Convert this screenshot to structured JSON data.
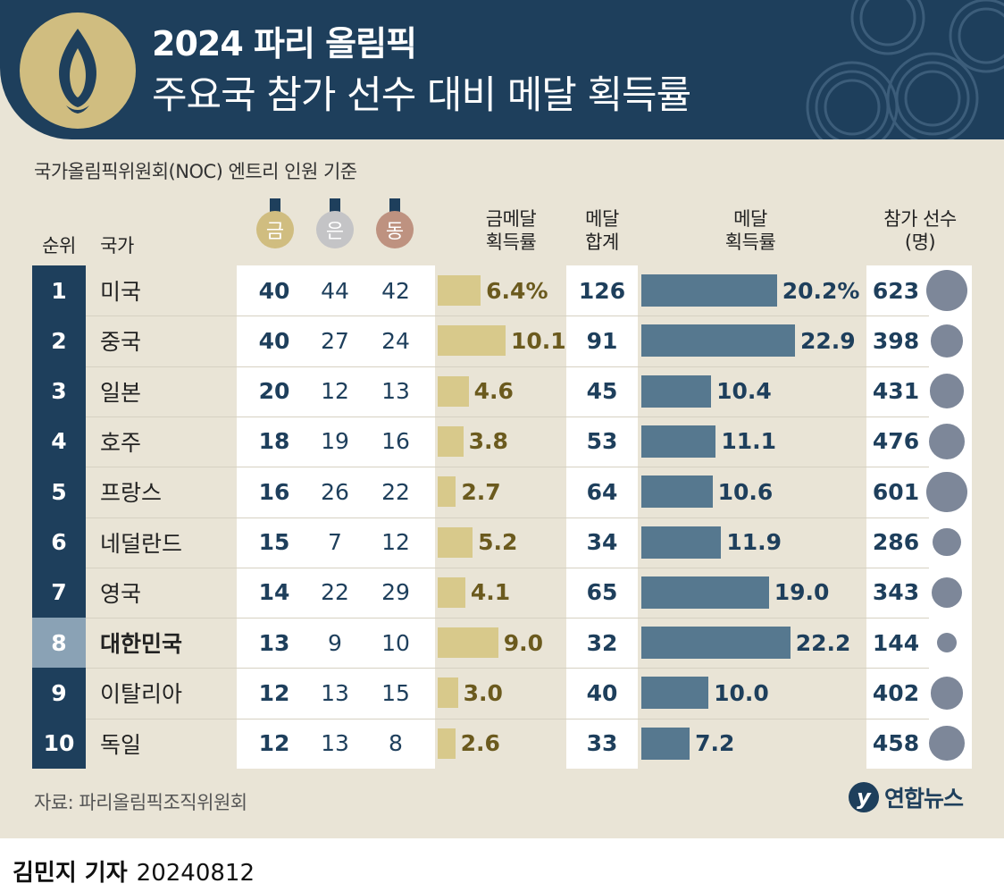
{
  "header": {
    "title": "2024 파리 올림픽",
    "subtitle": "주요국 참가 선수 대비 메달 획득률"
  },
  "note": "국가올림픽위원회(NOC) 엔트리 인원 기준",
  "columns": {
    "rank": "순위",
    "country": "국가",
    "gold": "금",
    "silver": "은",
    "bronze": "동",
    "gold_rate_1": "금메달",
    "gold_rate_2": "획득률",
    "total_1": "메달",
    "total_2": "합계",
    "medal_rate_1": "메달",
    "medal_rate_2": "획득률",
    "athletes_1": "참가 선수",
    "athletes_2": "(명)"
  },
  "colors": {
    "navy": "#1e3f5c",
    "gold": "#d0bd80",
    "silver": "#c4c4c6",
    "bronze": "#be9280",
    "highlight": "#8aa2b5"
  },
  "chart_data": {
    "type": "table",
    "title": "주요국 참가 선수 대비 메달 획득률",
    "gold_rate_max": 10.1,
    "medal_rate_max": 22.9,
    "athletes_max": 623,
    "rows": [
      {
        "rank": "1",
        "country": "미국",
        "gold": "40",
        "silver": "44",
        "bronze": "42",
        "gold_rate": 6.4,
        "gold_rate_label": "6.4%",
        "total": "126",
        "medal_rate": 20.2,
        "medal_rate_label": "20.2%",
        "athletes": 623,
        "athletes_label": "623",
        "highlight": false
      },
      {
        "rank": "2",
        "country": "중국",
        "gold": "40",
        "silver": "27",
        "bronze": "24",
        "gold_rate": 10.1,
        "gold_rate_label": "10.1",
        "total": "91",
        "medal_rate": 22.9,
        "medal_rate_label": "22.9",
        "athletes": 398,
        "athletes_label": "398",
        "highlight": false
      },
      {
        "rank": "3",
        "country": "일본",
        "gold": "20",
        "silver": "12",
        "bronze": "13",
        "gold_rate": 4.6,
        "gold_rate_label": "4.6",
        "total": "45",
        "medal_rate": 10.4,
        "medal_rate_label": "10.4",
        "athletes": 431,
        "athletes_label": "431",
        "highlight": false
      },
      {
        "rank": "4",
        "country": "호주",
        "gold": "18",
        "silver": "19",
        "bronze": "16",
        "gold_rate": 3.8,
        "gold_rate_label": "3.8",
        "total": "53",
        "medal_rate": 11.1,
        "medal_rate_label": "11.1",
        "athletes": 476,
        "athletes_label": "476",
        "highlight": false
      },
      {
        "rank": "5",
        "country": "프랑스",
        "gold": "16",
        "silver": "26",
        "bronze": "22",
        "gold_rate": 2.7,
        "gold_rate_label": "2.7",
        "total": "64",
        "medal_rate": 10.6,
        "medal_rate_label": "10.6",
        "athletes": 601,
        "athletes_label": "601",
        "highlight": false
      },
      {
        "rank": "6",
        "country": "네덜란드",
        "gold": "15",
        "silver": "7",
        "bronze": "12",
        "gold_rate": 5.2,
        "gold_rate_label": "5.2",
        "total": "34",
        "medal_rate": 11.9,
        "medal_rate_label": "11.9",
        "athletes": 286,
        "athletes_label": "286",
        "highlight": false
      },
      {
        "rank": "7",
        "country": "영국",
        "gold": "14",
        "silver": "22",
        "bronze": "29",
        "gold_rate": 4.1,
        "gold_rate_label": "4.1",
        "total": "65",
        "medal_rate": 19.0,
        "medal_rate_label": "19.0",
        "athletes": 343,
        "athletes_label": "343",
        "highlight": false
      },
      {
        "rank": "8",
        "country": "대한민국",
        "gold": "13",
        "silver": "9",
        "bronze": "10",
        "gold_rate": 9.0,
        "gold_rate_label": "9.0",
        "total": "32",
        "medal_rate": 22.2,
        "medal_rate_label": "22.2",
        "athletes": 144,
        "athletes_label": "144",
        "highlight": true
      },
      {
        "rank": "9",
        "country": "이탈리아",
        "gold": "12",
        "silver": "13",
        "bronze": "15",
        "gold_rate": 3.0,
        "gold_rate_label": "3.0",
        "total": "40",
        "medal_rate": 10.0,
        "medal_rate_label": "10.0",
        "athletes": 402,
        "athletes_label": "402",
        "highlight": false
      },
      {
        "rank": "10",
        "country": "독일",
        "gold": "12",
        "silver": "13",
        "bronze": "8",
        "gold_rate": 2.6,
        "gold_rate_label": "2.6",
        "total": "33",
        "medal_rate": 7.2,
        "medal_rate_label": "7.2",
        "athletes": 458,
        "athletes_label": "458",
        "highlight": false
      }
    ]
  },
  "source": "자료: 파리올림픽조직위원회",
  "brand": {
    "mark": "y",
    "name": "연합뉴스"
  },
  "byline": {
    "author": "김민지 기자",
    "date": "20240812"
  }
}
